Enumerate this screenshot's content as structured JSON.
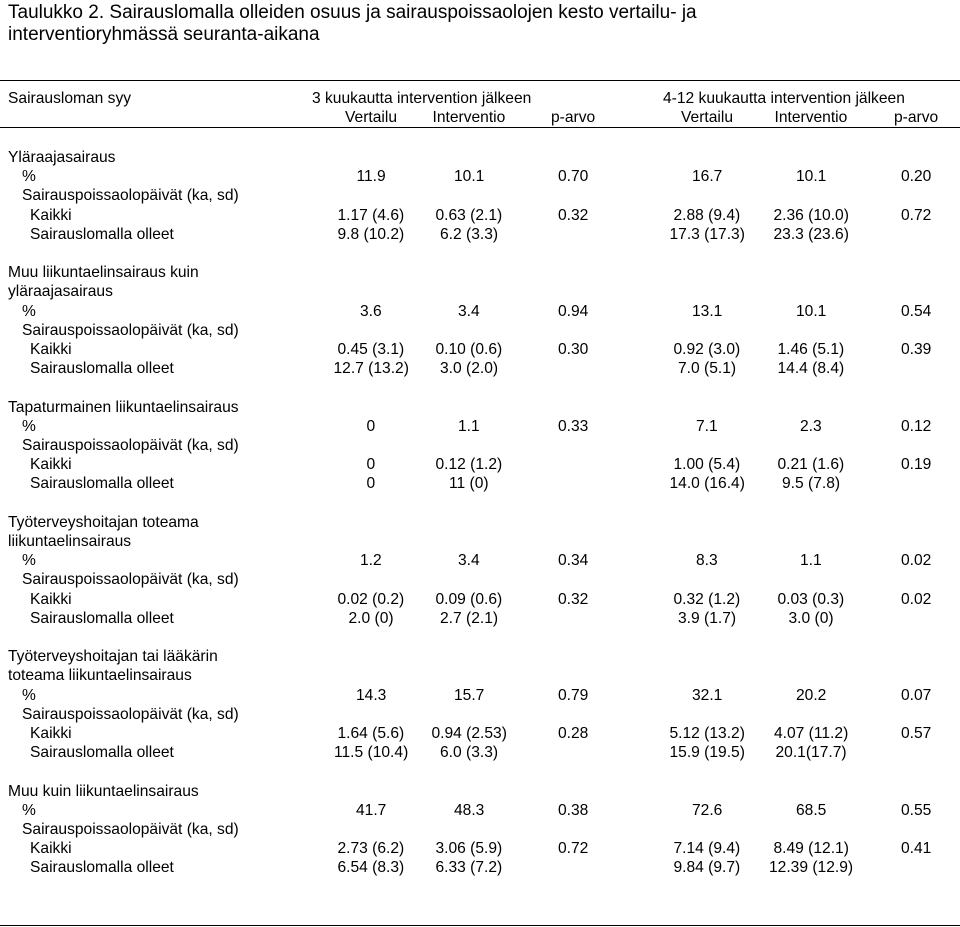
{
  "title_lines": [
    "Taulukko 2. Sairauslomalla olleiden osuus ja sairauspoissaolojen kesto vertailu- ja",
    "interventioryhmässä seuranta-aikana"
  ],
  "header": {
    "row_label": "Sairausloman syy",
    "group_3m": "3 kuukautta intervention jälkeen",
    "group_4_12m": "4-12 kuukautta intervention jälkeen",
    "columns": [
      "Vertailu",
      "Interventio",
      "p-arvo",
      "Vertailu",
      "Interventio",
      "p-arvo"
    ]
  },
  "sections": [
    {
      "title_lines": [
        "Yläraajasairaus"
      ],
      "rows": [
        {
          "label": "%",
          "values": [
            "11.9",
            "10.1",
            "0.70",
            "16.7",
            "10.1",
            "0.20"
          ]
        },
        {
          "label": "Sairauspoissaolopäivät (ka, sd)",
          "values": [
            "",
            "",
            "",
            "",
            "",
            ""
          ]
        },
        {
          "label": "Kaikki",
          "values": [
            "1.17 (4.6)",
            "0.63 (2.1)",
            "0.32",
            "2.88 (9.4)",
            "2.36 (10.0)",
            "0.72"
          ]
        },
        {
          "label": "Sairauslomalla olleet",
          "values": [
            "9.8 (10.2)",
            "6.2 (3.3)",
            "",
            "17.3 (17.3)",
            "23.3 (23.6)",
            ""
          ]
        }
      ]
    },
    {
      "title_lines": [
        "Muu liikuntaelinsairaus kuin",
        "yläraajasairaus"
      ],
      "rows": [
        {
          "label": "%",
          "values": [
            "3.6",
            "3.4",
            "0.94",
            "13.1",
            "10.1",
            "0.54"
          ]
        },
        {
          "label": "Sairauspoissaolopäivät (ka, sd)",
          "values": [
            "",
            "",
            "",
            "",
            "",
            ""
          ]
        },
        {
          "label": "Kaikki",
          "values": [
            "0.45 (3.1)",
            "0.10 (0.6)",
            "0.30",
            "0.92 (3.0)",
            "1.46 (5.1)",
            "0.39"
          ]
        },
        {
          "label": "Sairauslomalla olleet",
          "values": [
            "12.7 (13.2)",
            "3.0 (2.0)",
            "",
            "7.0 (5.1)",
            "14.4 (8.4)",
            ""
          ]
        }
      ]
    },
    {
      "title_lines": [
        "Tapaturmainen liikuntaelinsairaus"
      ],
      "rows": [
        {
          "label": "%",
          "values": [
            "0",
            "1.1",
            "0.33",
            "7.1",
            "2.3",
            "0.12"
          ]
        },
        {
          "label": "Sairauspoissaolopäivät (ka, sd)",
          "values": [
            "",
            "",
            "",
            "",
            "",
            ""
          ]
        },
        {
          "label": "Kaikki",
          "values": [
            "0",
            "0.12 (1.2)",
            "",
            "1.00 (5.4)",
            "0.21 (1.6)",
            "0.19"
          ]
        },
        {
          "label": "Sairauslomalla olleet",
          "values": [
            "0",
            "11 (0)",
            "",
            "14.0 (16.4)",
            "9.5 (7.8)",
            ""
          ]
        }
      ]
    },
    {
      "title_lines": [
        "Työterveyshoitajan toteama",
        "liikuntaelinsairaus"
      ],
      "rows": [
        {
          "label": "%",
          "values": [
            "1.2",
            "3.4",
            "0.34",
            "8.3",
            "1.1",
            "0.02"
          ]
        },
        {
          "label": "Sairauspoissaolopäivät (ka, sd)",
          "values": [
            "",
            "",
            "",
            "",
            "",
            ""
          ]
        },
        {
          "label": "Kaikki",
          "values": [
            "0.02 (0.2)",
            "0.09 (0.6)",
            "0.32",
            "0.32 (1.2)",
            "0.03 (0.3)",
            "0.02"
          ]
        },
        {
          "label": "Sairauslomalla olleet",
          "values": [
            "2.0 (0)",
            "2.7 (2.1)",
            "",
            "3.9 (1.7)",
            "3.0 (0)",
            ""
          ]
        }
      ]
    },
    {
      "title_lines": [
        "Työterveyshoitajan tai lääkärin",
        "toteama liikuntaelinsairaus"
      ],
      "rows": [
        {
          "label": "%",
          "values": [
            "14.3",
            "15.7",
            "0.79",
            "32.1",
            "20.2",
            "0.07"
          ]
        },
        {
          "label": "Sairauspoissaolopäivät (ka, sd)",
          "values": [
            "",
            "",
            "",
            "",
            "",
            ""
          ]
        },
        {
          "label": "Kaikki",
          "values": [
            "1.64 (5.6)",
            "0.94 (2.53)",
            "0.28",
            "5.12 (13.2)",
            "4.07 (11.2)",
            "0.57"
          ]
        },
        {
          "label": "Sairauslomalla olleet",
          "values": [
            "11.5 (10.4)",
            "6.0 (3.3)",
            "",
            "15.9 (19.5)",
            "20.1(17.7)",
            ""
          ]
        }
      ]
    },
    {
      "title_lines": [
        "Muu kuin liikuntaelinsairaus"
      ],
      "rows": [
        {
          "label": "%",
          "values": [
            "41.7",
            "48.3",
            "0.38",
            "72.6",
            "68.5",
            "0.55"
          ]
        },
        {
          "label": "Sairauspoissaolopäivät (ka, sd)",
          "values": [
            "",
            "",
            "",
            "",
            "",
            ""
          ]
        },
        {
          "label": "Kaikki",
          "values": [
            "2.73 (6.2)",
            "3.06 (5.9)",
            "0.72",
            "7.14 (9.4)",
            "8.49 (12.1)",
            "0.41"
          ]
        },
        {
          "label": "Sairauslomalla olleet",
          "values": [
            "6.54 (8.3)",
            "6.33 (7.2)",
            "",
            "9.84 (9.7)",
            "12.39 (12.9)",
            ""
          ]
        }
      ]
    }
  ]
}
